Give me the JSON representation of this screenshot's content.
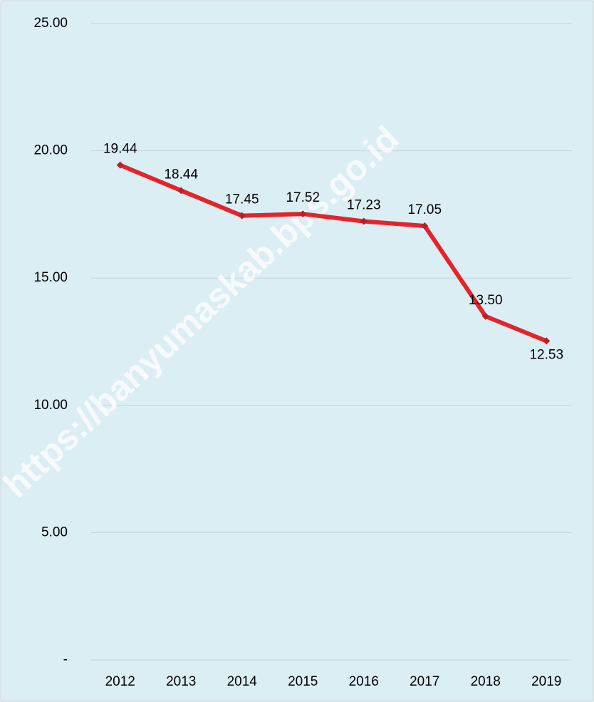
{
  "chart_data": {
    "type": "line",
    "categories": [
      "2012",
      "2013",
      "2014",
      "2015",
      "2016",
      "2017",
      "2018",
      "2019"
    ],
    "series": [
      {
        "color": "#e3242b",
        "values": [
          19.44,
          18.44,
          17.45,
          17.52,
          17.23,
          17.05,
          13.5,
          12.53
        ],
        "value_labels": [
          "19.44",
          "18.44",
          "17.45",
          "17.52",
          "17.23",
          "17.05",
          "13.50",
          "12.53"
        ]
      }
    ],
    "ylim": [
      0,
      25
    ],
    "yticks": [
      {
        "value": 0,
        "label": "-"
      },
      {
        "value": 5,
        "label": "5.00"
      },
      {
        "value": 10,
        "label": "10.00"
      },
      {
        "value": 15,
        "label": "15.00"
      },
      {
        "value": 20,
        "label": "20.00"
      },
      {
        "value": 25,
        "label": "25.00"
      }
    ],
    "grid": true,
    "watermark": "https://banyumaskab.bps.go.id"
  }
}
